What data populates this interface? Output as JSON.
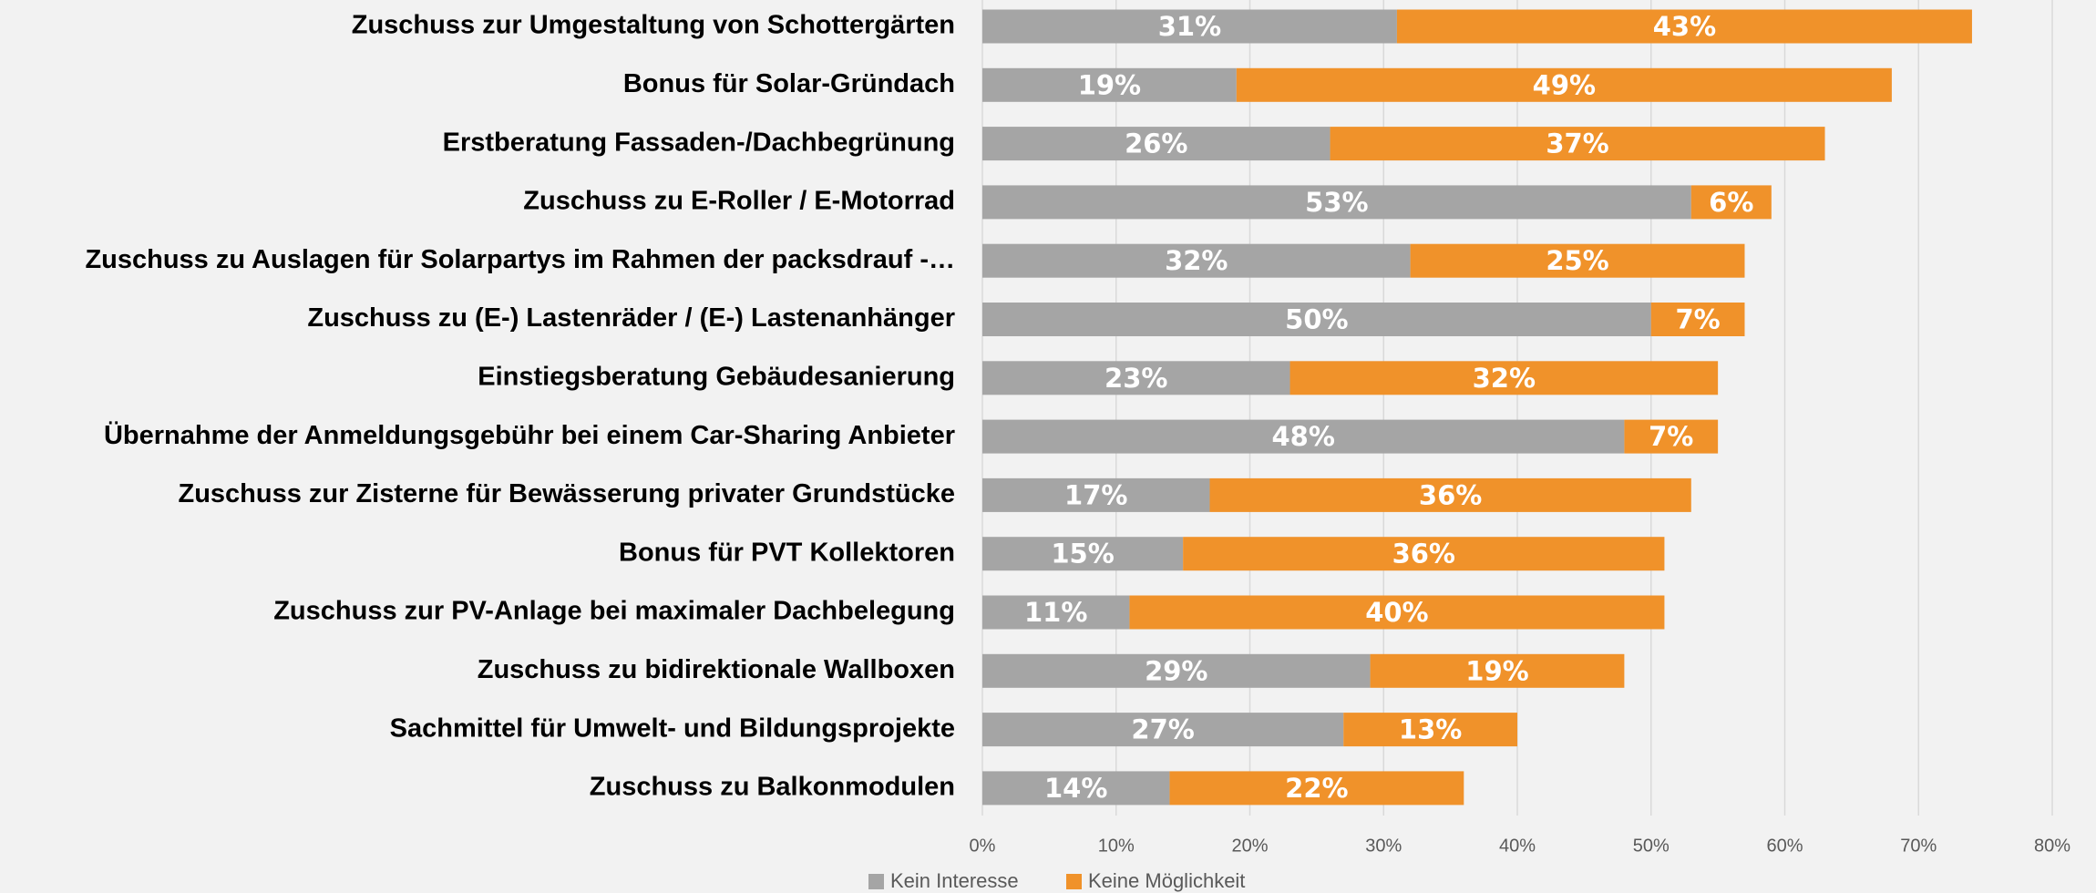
{
  "chart_data": {
    "type": "stacked_barh",
    "categories": [
      "Zuschuss zur Umgestaltung von Schottergärten",
      "Bonus für Solar-Gründach",
      "Erstberatung Fassaden-/Dachbegrünung",
      "Zuschuss zu E-Roller / E-Motorrad",
      "Zuschuss zu Auslagen für Solarpartys im Rahmen der packsdrauf -…",
      "Zuschuss zu (E-) Lastenräder / (E-) Lastenanhänger",
      "Einstiegsberatung Gebäudesanierung",
      "Übernahme der Anmeldungsgebühr bei einem Car-Sharing Anbieter",
      "Zuschuss zur Zisterne für Bewässerung privater Grundstücke",
      "Bonus für PVT Kollektoren",
      "Zuschuss zur PV-Anlage bei maximaler Dachbelegung",
      "Zuschuss zu bidirektionale Wallboxen",
      "Sachmittel für Umwelt- und Bildungsprojekte",
      "Zuschuss zu Balkonmodulen"
    ],
    "series": [
      {
        "name": "Kein Interesse",
        "color": "#a5a5a5",
        "values": [
          31,
          19,
          26,
          53,
          32,
          50,
          23,
          48,
          17,
          15,
          11,
          29,
          27,
          14
        ],
        "value_labels": [
          "31%",
          "19%",
          "26%",
          "53%",
          "32%",
          "50%",
          "23%",
          "48%",
          "17%",
          "15%",
          "11%",
          "29%",
          "27%",
          "14%"
        ]
      },
      {
        "name": "Keine Möglichkeit",
        "color": "#f0922a",
        "values": [
          43,
          49,
          37,
          6,
          25,
          7,
          32,
          7,
          36,
          36,
          40,
          19,
          13,
          22
        ],
        "value_labels": [
          "43%",
          "49%",
          "37%",
          "6%",
          "25%",
          "7%",
          "32%",
          "7%",
          "36%",
          "36%",
          "40%",
          "19%",
          "13%",
          "22%"
        ]
      }
    ],
    "xlim": [
      0,
      80
    ],
    "xticks": [
      {
        "value": 0,
        "label": "0%"
      },
      {
        "value": 10,
        "label": "10%"
      },
      {
        "value": 20,
        "label": "20%"
      },
      {
        "value": 30,
        "label": "30%"
      },
      {
        "value": 40,
        "label": "40%"
      },
      {
        "value": 50,
        "label": "50%"
      },
      {
        "value": 60,
        "label": "60%"
      },
      {
        "value": 70,
        "label": "70%"
      },
      {
        "value": 80,
        "label": "80%"
      }
    ],
    "grid": true,
    "legend": "bottom"
  }
}
